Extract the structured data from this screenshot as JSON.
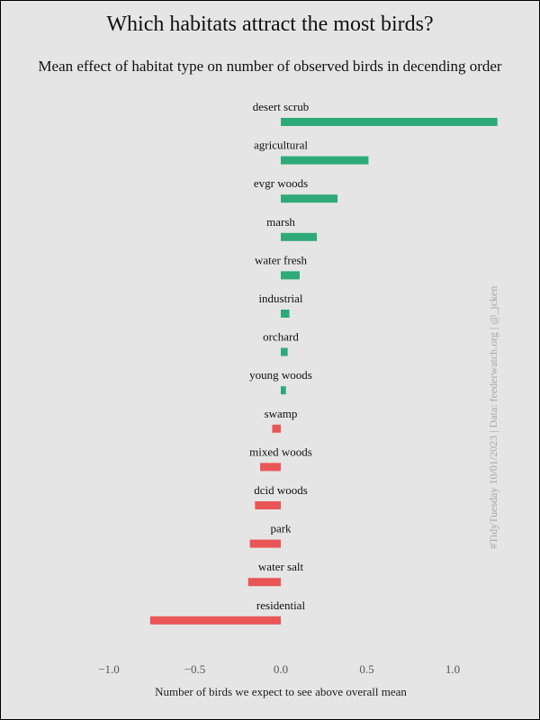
{
  "title": "Which habitats attract the most birds?",
  "subtitle": "Mean effect of habitat type on number of observed birds in decending order",
  "caption": "#TidyTuesday 10/01/2023 | Data: feederwatch.org | @_jcken",
  "colors": {
    "positive": "#2eaa78",
    "negative": "#ea5556",
    "background": "#e5e5e5"
  },
  "chart_data": {
    "type": "bar",
    "orientation": "horizontal",
    "categories": [
      "desert scrub",
      "agricultural",
      "evgr woods",
      "marsh",
      "water fresh",
      "industrial",
      "orchard",
      "young woods",
      "swamp",
      "mixed woods",
      "dcid woods",
      "park",
      "water salt",
      "residential"
    ],
    "values": [
      1.26,
      0.51,
      0.33,
      0.21,
      0.11,
      0.05,
      0.04,
      0.03,
      -0.05,
      -0.12,
      -0.15,
      -0.18,
      -0.19,
      -0.76
    ],
    "xlabel": "Number of birds we expect to see above overall mean",
    "xticks": [
      -1.0,
      -0.5,
      0.0,
      0.5,
      1.0
    ],
    "xtick_labels": [
      "−1.0",
      "−0.5",
      "0.0",
      "0.5",
      "1.0"
    ],
    "xlim": [
      -1.0,
      1.3
    ],
    "grid": false
  }
}
